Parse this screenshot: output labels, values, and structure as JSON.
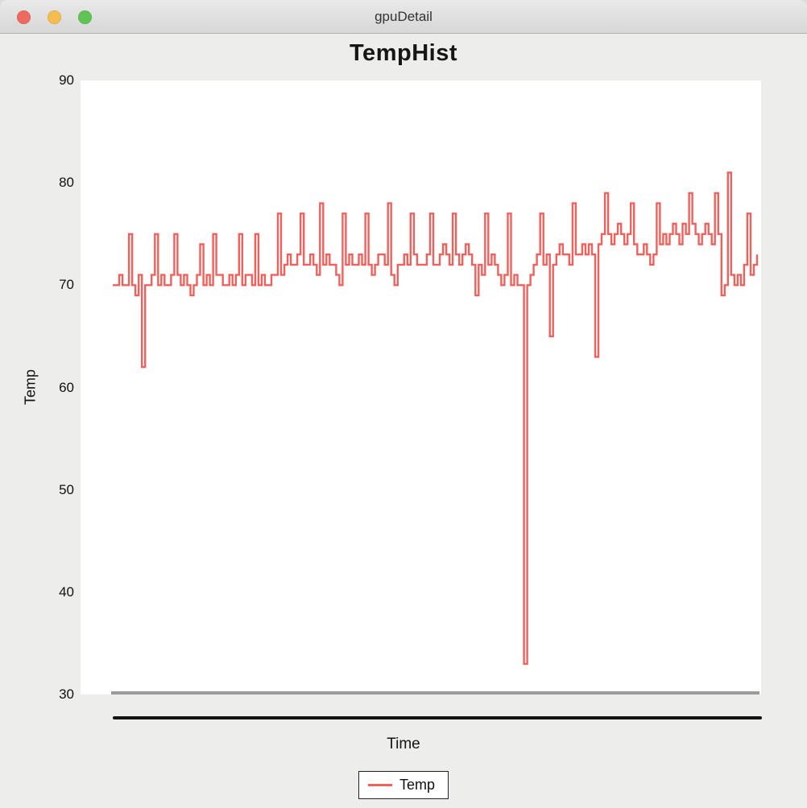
{
  "window": {
    "title": "gpuDetail",
    "controls": {
      "close_color": "#ee6a5f",
      "minimize_color": "#f5bd4f",
      "zoom_color": "#5fc454"
    }
  },
  "chart_data": {
    "type": "line",
    "title": "TempHist",
    "xlabel": "Time",
    "ylabel": "Temp",
    "legend_position": "bottom",
    "grid": false,
    "ylim": [
      30,
      90
    ],
    "yticks": [
      90,
      80,
      70,
      60,
      50,
      40,
      30
    ],
    "baseline_color": "#9b9b9b",
    "axis_color": "#141414",
    "series": [
      {
        "name": "Temp",
        "color": "#f2605c",
        "values": [
          70,
          70,
          71,
          70,
          70,
          75,
          70,
          69,
          71,
          62,
          70,
          70,
          71,
          75,
          70,
          71,
          70,
          70,
          71,
          75,
          71,
          70,
          71,
          70,
          69,
          70,
          71,
          74,
          70,
          71,
          70,
          75,
          71,
          71,
          70,
          70,
          71,
          70,
          71,
          75,
          70,
          71,
          71,
          70,
          75,
          70,
          71,
          70,
          70,
          71,
          71,
          77,
          71,
          72,
          73,
          72,
          72,
          73,
          77,
          72,
          72,
          73,
          72,
          71,
          78,
          72,
          73,
          72,
          72,
          71,
          70,
          77,
          72,
          73,
          72,
          72,
          73,
          72,
          77,
          72,
          71,
          72,
          73,
          73,
          72,
          78,
          71,
          70,
          72,
          72,
          73,
          72,
          77,
          73,
          72,
          72,
          72,
          73,
          77,
          72,
          72,
          73,
          74,
          73,
          72,
          77,
          73,
          72,
          73,
          74,
          73,
          72,
          69,
          72,
          71,
          77,
          72,
          73,
          72,
          71,
          70,
          71,
          77,
          70,
          71,
          70,
          70,
          33,
          70,
          71,
          72,
          73,
          77,
          72,
          73,
          65,
          72,
          73,
          74,
          73,
          73,
          72,
          78,
          73,
          73,
          74,
          73,
          74,
          73,
          63,
          74,
          75,
          79,
          75,
          74,
          75,
          76,
          75,
          74,
          75,
          78,
          74,
          73,
          73,
          74,
          73,
          72,
          73,
          78,
          74,
          75,
          74,
          75,
          76,
          75,
          74,
          76,
          75,
          79,
          76,
          75,
          74,
          75,
          76,
          75,
          74,
          79,
          75,
          69,
          70,
          81,
          71,
          70,
          71,
          70,
          72,
          77,
          71,
          72,
          73
        ]
      }
    ]
  }
}
